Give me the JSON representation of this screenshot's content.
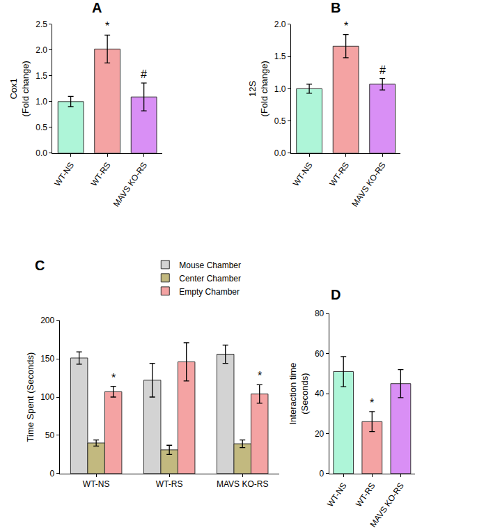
{
  "chart_data": [
    {
      "type": "bar",
      "title": "A",
      "y_label": "Cox1\n(Fold change)",
      "categories": [
        "WT-NS",
        "WT-RS",
        "MAVS KO-RS"
      ],
      "values": [
        1.0,
        2.02,
        1.09
      ],
      "errors": [
        0.1,
        0.27,
        0.27
      ],
      "colors": [
        "#aef5d8",
        "#f4a3a3",
        "#d98ff5"
      ],
      "ylim": [
        0,
        2.5
      ],
      "yticks": [
        {
          "value": 0,
          "label": "0.0"
        },
        0.5,
        {
          "value": 1,
          "label": "1.0"
        },
        1.5,
        {
          "value": 2,
          "label": "2.0"
        },
        2.5
      ],
      "grid": false,
      "annotations": [
        {
          "category": "WT-RS",
          "text": "*"
        },
        {
          "category": "MAVS KO-RS",
          "text": "#"
        }
      ]
    },
    {
      "type": "bar",
      "title": "B",
      "y_label": "12S\n(Fold change)",
      "categories": [
        "WT-NS",
        "WT-RS",
        "MAVS KO-RS"
      ],
      "values": [
        1.0,
        1.66,
        1.07
      ],
      "errors": [
        0.07,
        0.18,
        0.09
      ],
      "colors": [
        "#aef5d8",
        "#f4a3a3",
        "#d98ff5"
      ],
      "ylim": [
        0,
        2
      ],
      "yticks": [
        {
          "value": 0,
          "label": "0.0"
        },
        0.5,
        {
          "value": 1,
          "label": "1.0"
        },
        1.5,
        {
          "value": 2,
          "label": "2.0"
        }
      ],
      "grid": false,
      "annotations": [
        {
          "category": "WT-RS",
          "text": "*"
        },
        {
          "category": "MAVS KO-RS",
          "text": "#"
        }
      ]
    },
    {
      "type": "bar",
      "title": "C",
      "y_label": "Time Spent (Seconds)",
      "categories": [
        "WT-NS",
        "WT-RS",
        "MAVS KO-RS"
      ],
      "series": [
        {
          "name": "Mouse Chamber",
          "color": "#d3d3d3",
          "values": [
            151,
            122,
            156
          ],
          "errors": [
            8,
            22,
            12
          ]
        },
        {
          "name": "Center Chamber",
          "color": "#c2b97f",
          "values": [
            40,
            31,
            39
          ],
          "errors": [
            4,
            6,
            5
          ]
        },
        {
          "name": "Empty Chamber",
          "color": "#f4a3a3",
          "values": [
            107,
            146,
            104
          ],
          "errors": [
            7,
            25,
            12
          ]
        }
      ],
      "ylim": [
        0,
        200
      ],
      "yticks": [
        0,
        50,
        100,
        150,
        200
      ],
      "grid": false,
      "legend": "top",
      "annotations": [
        {
          "category": "WT-NS",
          "series": "Empty Chamber",
          "text": "*"
        },
        {
          "category": "MAVS KO-RS",
          "series": "Empty Chamber",
          "text": "*"
        }
      ]
    },
    {
      "type": "bar",
      "title": "D",
      "y_label": "Interaction time\n(Seconds)",
      "categories": [
        "WT-NS",
        "WT-RS",
        "MAVS KO-RS"
      ],
      "values": [
        51,
        26,
        45
      ],
      "errors": [
        7.5,
        5,
        7
      ],
      "colors": [
        "#aef5d8",
        "#f4a3a3",
        "#d98ff5"
      ],
      "ylim": [
        0,
        80
      ],
      "yticks": [
        0,
        20,
        40,
        60,
        80
      ],
      "grid": false,
      "annotations": [
        {
          "category": "WT-RS",
          "text": "*"
        }
      ]
    }
  ]
}
